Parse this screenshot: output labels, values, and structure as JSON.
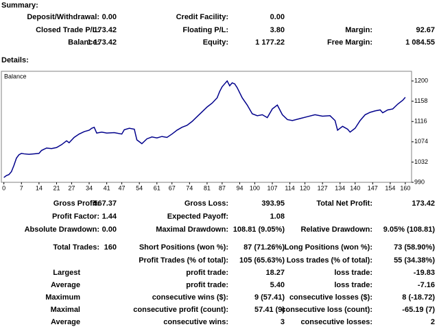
{
  "summary": {
    "title": "Summary:",
    "rows": [
      [
        {
          "label": "Deposit/Withdrawal:",
          "value": "0.00"
        },
        {
          "label": "Credit Facility:",
          "value": "0.00"
        },
        null
      ],
      [
        {
          "label": "Closed Trade P/L:",
          "value": "173.42"
        },
        {
          "label": "Floating P/L:",
          "value": "3.80"
        },
        {
          "label": "Margin:",
          "value": "92.67"
        }
      ],
      [
        {
          "label": "Balance:",
          "value": "1 173.42"
        },
        {
          "label": "Equity:",
          "value": "1 177.22"
        },
        {
          "label": "Free Margin:",
          "value": "1 084.55"
        }
      ]
    ]
  },
  "details": {
    "title": "Details:",
    "rows": [
      [
        {
          "label": "Gross Profit:",
          "value": "567.37"
        },
        {
          "label": "Gross Loss:",
          "value": "393.95"
        },
        {
          "label": "Total Net Profit:",
          "value": "173.42"
        }
      ],
      [
        {
          "label": "Profit Factor:",
          "value": "1.44"
        },
        {
          "label": "Expected Payoff:",
          "value": "1.08"
        },
        null
      ],
      [
        {
          "label": "Absolute Drawdown:",
          "value": "0.00"
        },
        {
          "label": "Maximal Drawdown:",
          "value": "108.81 (9.05%)"
        },
        {
          "label": "Relative Drawdown:",
          "value": "9.05% (108.81)"
        }
      ],
      [
        {
          "label": "Total Trades:",
          "value": "160"
        },
        {
          "label": "Short Positions (won %):",
          "value": "87 (71.26%)"
        },
        {
          "label": "Long Positions (won %):",
          "value": "73 (58.90%)"
        }
      ],
      [
        null,
        {
          "label": "Profit Trades (% of total):",
          "value": "105 (65.63%)"
        },
        {
          "label": "Loss trades (% of total):",
          "value": "55 (34.38%)"
        }
      ],
      [
        {
          "label": "Largest"
        },
        {
          "label": "profit trade:",
          "value": "18.27"
        },
        {
          "label": "loss trade:",
          "value": "-19.83"
        }
      ],
      [
        {
          "label": "Average"
        },
        {
          "label": "profit trade:",
          "value": "5.40"
        },
        {
          "label": "loss trade:",
          "value": "-7.16"
        }
      ],
      [
        {
          "label": "Maximum"
        },
        {
          "label": "consecutive wins ($):",
          "value": "9 (57.41)"
        },
        {
          "label": "consecutive losses ($):",
          "value": "8 (-18.72)"
        }
      ],
      [
        {
          "label": "Maximal"
        },
        {
          "label": "consecutive profit (count):",
          "value": "57.41 (9)"
        },
        {
          "label": "consecutive loss (count):",
          "value": "-65.19 (7)"
        }
      ],
      [
        {
          "label": "Average"
        },
        {
          "label": "consecutive wins:",
          "value": "3"
        },
        {
          "label": "consecutive losses:",
          "value": "2"
        }
      ]
    ]
  },
  "chart_data": {
    "type": "line",
    "series": [
      {
        "name": "Balance",
        "color": "#00008b",
        "x": [
          0,
          1,
          2,
          3,
          4,
          5,
          6,
          7,
          8,
          10,
          12,
          14,
          15,
          17,
          19,
          21,
          23,
          25,
          26,
          28,
          30,
          32,
          34,
          35,
          36,
          37,
          39,
          41,
          44,
          47,
          48,
          50,
          52,
          53,
          55,
          57,
          59,
          61,
          63,
          65,
          67,
          69,
          71,
          73,
          75,
          77,
          79,
          81,
          83,
          85,
          86,
          87,
          88,
          89,
          90,
          91,
          92,
          93,
          95,
          97,
          99,
          101,
          103,
          105,
          107,
          109,
          111,
          113,
          115,
          118,
          121,
          124,
          127,
          130,
          132,
          133,
          135,
          137,
          138,
          140,
          142,
          144,
          146,
          148,
          150,
          151,
          153,
          155,
          157,
          159,
          160
        ],
        "values": [
          1000,
          1004,
          1006,
          1012,
          1025,
          1040,
          1047,
          1050,
          1049,
          1048,
          1049,
          1050,
          1056,
          1061,
          1060,
          1062,
          1068,
          1076,
          1072,
          1083,
          1090,
          1095,
          1098,
          1102,
          1104,
          1092,
          1094,
          1092,
          1093,
          1090,
          1099,
          1102,
          1100,
          1078,
          1070,
          1080,
          1084,
          1082,
          1085,
          1083,
          1090,
          1098,
          1104,
          1108,
          1116,
          1126,
          1136,
          1146,
          1154,
          1165,
          1178,
          1188,
          1194,
          1200,
          1190,
          1196,
          1194,
          1186,
          1165,
          1150,
          1132,
          1128,
          1130,
          1124,
          1142,
          1150,
          1130,
          1120,
          1118,
          1122,
          1126,
          1130,
          1127,
          1128,
          1118,
          1098,
          1106,
          1100,
          1094,
          1102,
          1118,
          1130,
          1135,
          1138,
          1140,
          1134,
          1140,
          1142,
          1152,
          1160,
          1166
        ]
      }
    ],
    "xlim": [
      -1,
      162.5
    ],
    "ylim": [
      990,
      1220
    ],
    "xticks": [
      0,
      7,
      14,
      21,
      27,
      34,
      41,
      47,
      54,
      61,
      67,
      74,
      81,
      87,
      94,
      100,
      107,
      114,
      120,
      127,
      134,
      140,
      147,
      154,
      160
    ],
    "yticks": [
      990,
      1032,
      1074,
      1116,
      1158,
      1200
    ],
    "grid": false
  }
}
